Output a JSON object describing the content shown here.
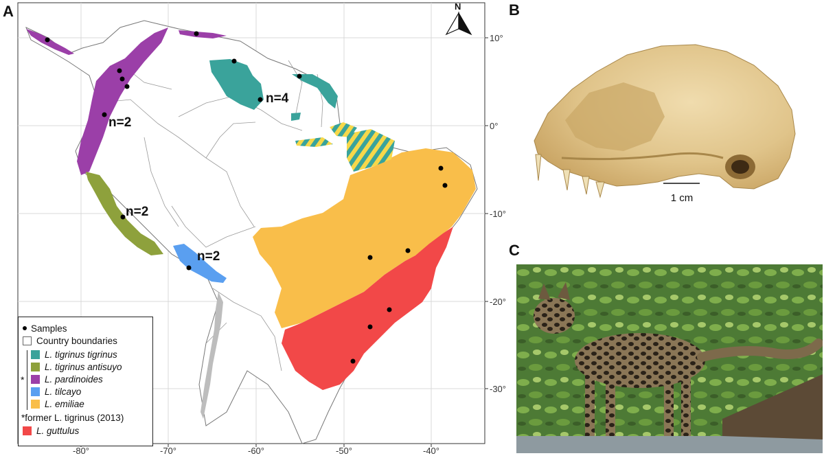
{
  "panels": {
    "a": "A",
    "b": "B",
    "c": "C"
  },
  "map": {
    "lon_ticks": [
      "-80°",
      "-70°",
      "-60°",
      "-50°",
      "-40°"
    ],
    "lat_ticks": [
      "10°",
      "0°",
      "-10°",
      "-20°",
      "-30°"
    ],
    "north_label": "N",
    "annotations": [
      "n=2",
      "n=4",
      "n=2",
      "n=2"
    ],
    "colors": {
      "tigrinus_tigrinus": "#3aa39b",
      "tigrinus_antisuyo": "#8ea13c",
      "pardinoides": "#9b3fa8",
      "tilcayo": "#5a9ff0",
      "emiliae": "#f9be4a",
      "guttulus": "#f24848",
      "grey_range": "#bdbdbd",
      "hatch_yellow": "#f6d84a"
    }
  },
  "legend": {
    "samples": "Samples",
    "boundaries": "Country boundaries",
    "species": [
      {
        "label": "L. tigrinus tigrinus",
        "color": "#3aa39b"
      },
      {
        "label": "L. tigrinus antisuyo",
        "color": "#8ea13c"
      },
      {
        "label": "L. pardinoides",
        "color": "#9b3fa8"
      },
      {
        "label": "L. tilcayo",
        "color": "#5a9ff0"
      },
      {
        "label": "L. emiliae",
        "color": "#f9be4a"
      }
    ],
    "asterisk": "*",
    "former_note": "*former L. tigrinus (2013)",
    "guttulus": {
      "label": "L. guttulus",
      "color": "#f24848"
    }
  },
  "skull": {
    "scale_label": "1 cm"
  }
}
